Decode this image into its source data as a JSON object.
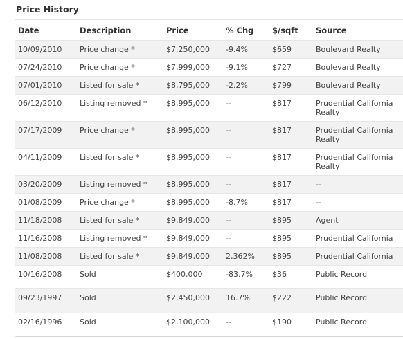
{
  "title": "Price History",
  "columns": {
    "date": "Date",
    "description": "Description",
    "price": "Price",
    "pct_chg": "% Chg",
    "per_sqft": "$/sqft",
    "source": "Source"
  },
  "colors": {
    "negative": "#d01818",
    "positive": "#1a9a1a",
    "row_stripe": "#f2f2f2"
  },
  "rows": [
    {
      "date": "10/09/2010",
      "description": "Price change *",
      "price": "$7,250,000",
      "pct_chg": "-9.4%",
      "sign": "neg",
      "per_sqft": "$659",
      "source": "Boulevard Realty"
    },
    {
      "date": "07/24/2010",
      "description": "Price change *",
      "price": "$7,999,000",
      "pct_chg": "-9.1%",
      "sign": "neg",
      "per_sqft": "$727",
      "source": "Boulevard Realty"
    },
    {
      "date": "07/01/2010",
      "description": "Listed for sale *",
      "price": "$8,795,000",
      "pct_chg": "-2.2%",
      "sign": "neg",
      "per_sqft": "$799",
      "source": "Boulevard Realty"
    },
    {
      "date": "06/12/2010",
      "description": "Listing removed *",
      "price": "$8,995,000",
      "pct_chg": "--",
      "sign": "neu",
      "per_sqft": "$817",
      "source": "Prudential California Realty"
    },
    {
      "date": "07/17/2009",
      "description": "Price change *",
      "price": "$8,995,000",
      "pct_chg": "--",
      "sign": "neu",
      "per_sqft": "$817",
      "source": "Prudential California Realty"
    },
    {
      "date": "04/11/2009",
      "description": "Listed for sale *",
      "price": "$8,995,000",
      "pct_chg": "--",
      "sign": "neu",
      "per_sqft": "$817",
      "source": "Prudential California Realty"
    },
    {
      "date": "03/20/2009",
      "description": "Listing removed *",
      "price": "$8,995,000",
      "pct_chg": "--",
      "sign": "neu",
      "per_sqft": "$817",
      "source": "--"
    },
    {
      "date": "01/08/2009",
      "description": "Price change *",
      "price": "$8,995,000",
      "pct_chg": "-8.7%",
      "sign": "neg",
      "per_sqft": "$817",
      "source": "--"
    },
    {
      "date": "11/18/2008",
      "description": "Listed for sale *",
      "price": "$9,849,000",
      "pct_chg": "--",
      "sign": "neu",
      "per_sqft": "$895",
      "source": "Agent"
    },
    {
      "date": "11/16/2008",
      "description": "Listing removed *",
      "price": "$9,849,000",
      "pct_chg": "--",
      "sign": "neu",
      "per_sqft": "$895",
      "source": "Prudential California"
    },
    {
      "date": "11/08/2008",
      "description": "Listed for sale *",
      "price": "$9,849,000",
      "pct_chg": "2,362%",
      "sign": "pos",
      "per_sqft": "$895",
      "source": "Prudential California"
    },
    {
      "date": "10/16/2008",
      "description": "Sold",
      "price": "$400,000",
      "pct_chg": "-83.7%",
      "sign": "neg",
      "per_sqft": "$36",
      "source": "Public Record"
    },
    {
      "date": "09/23/1997",
      "description": "Sold",
      "price": "$2,450,000",
      "pct_chg": "16.7%",
      "sign": "pos",
      "per_sqft": "$222",
      "source": "Public Record"
    },
    {
      "date": "02/16/1996",
      "description": "Sold",
      "price": "$2,100,000",
      "pct_chg": "--",
      "sign": "neu",
      "per_sqft": "$190",
      "source": "Public Record"
    }
  ]
}
